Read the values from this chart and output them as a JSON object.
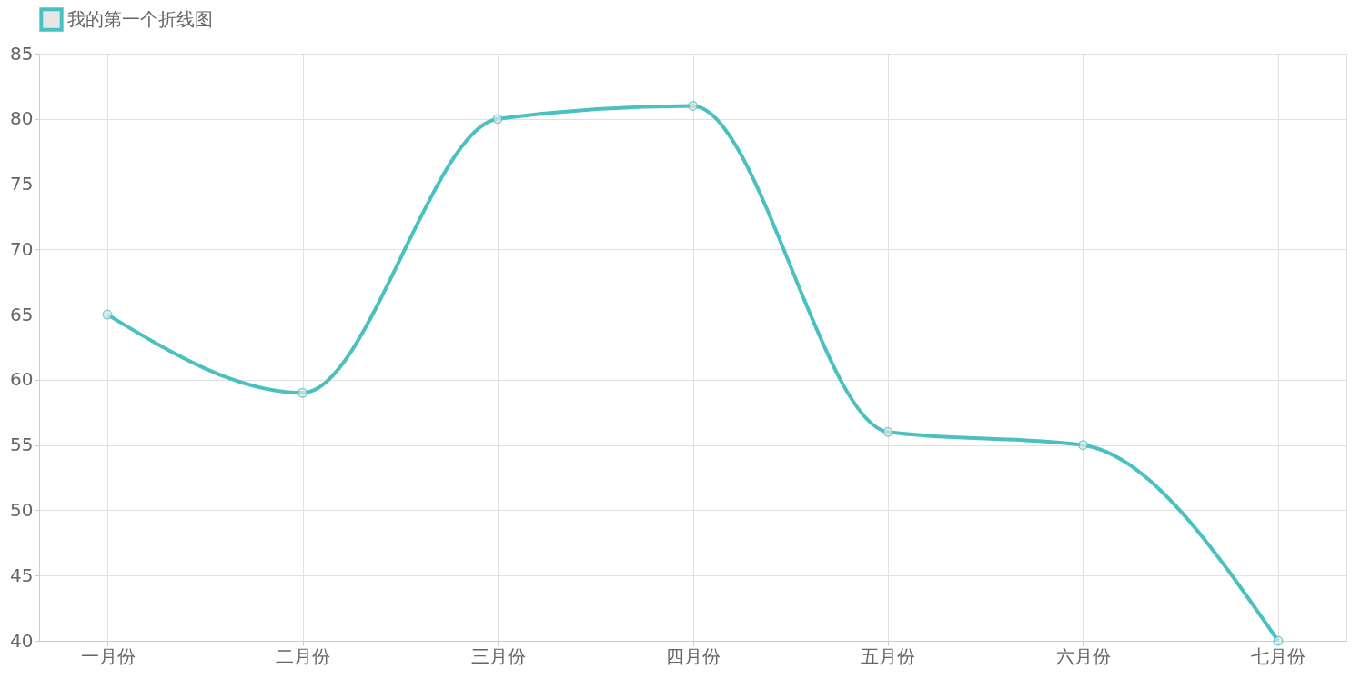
{
  "chart_data": {
    "type": "line",
    "categories": [
      "一月份",
      "二月份",
      "三月份",
      "四月份",
      "五月份",
      "六月份",
      "七月份"
    ],
    "series": [
      {
        "name": "我的第一个折线图",
        "color": "#4bc0c0",
        "values": [
          65,
          59,
          80,
          81,
          56,
          55,
          40
        ]
      }
    ],
    "ylim": [
      40,
      85
    ],
    "yticks": [
      40,
      45,
      50,
      55,
      60,
      65,
      70,
      75,
      80,
      85
    ],
    "grid": true,
    "legend": "top",
    "marker": "circle",
    "line_style": "solid"
  }
}
